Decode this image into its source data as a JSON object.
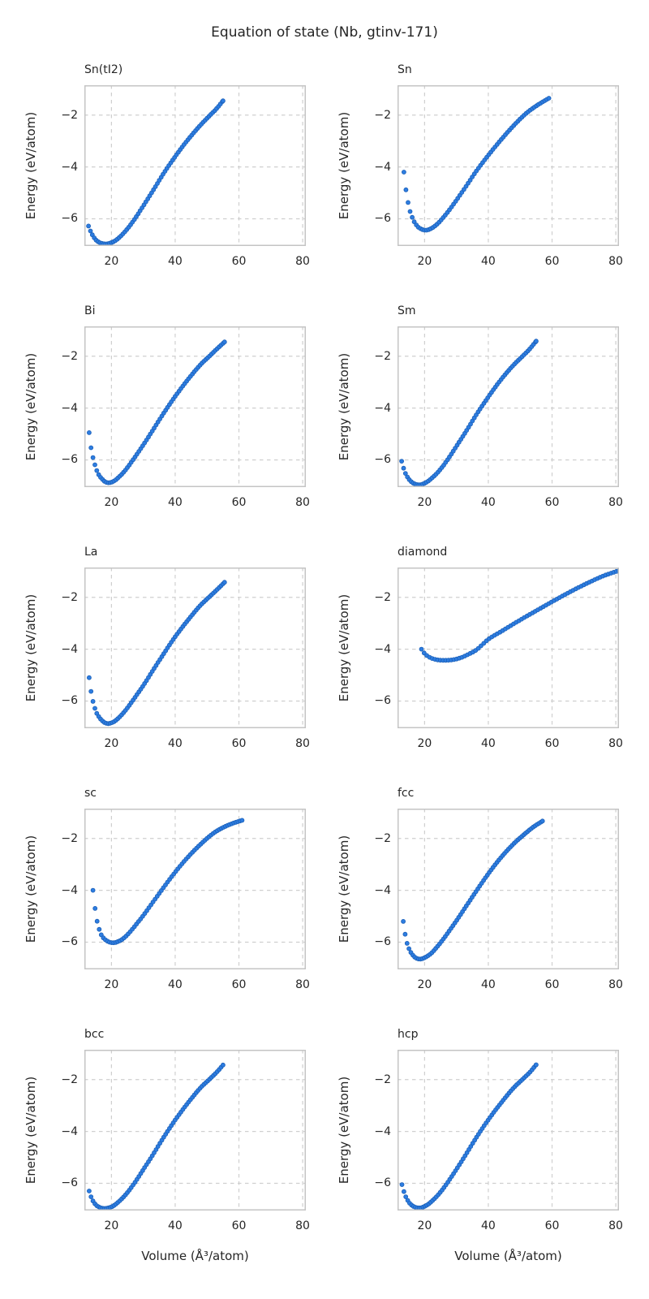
{
  "figure": {
    "title": "Equation of state (Nb, gtinv-171)"
  },
  "colors": {
    "marker_fill": "#2d7de1",
    "marker_edge": "#1c60b8",
    "grid": "#cfcfcf",
    "spine": "#c4c4c4",
    "text": "#262626",
    "background": "#ffffff"
  },
  "chart_data": {
    "type": "scatter",
    "title": "Equation of state (Nb, gtinv-171)",
    "xlabel": "Volume (Å³/atom)",
    "ylabel": "Energy (eV/atom)",
    "xlim": [
      11.5,
      81
    ],
    "ylim": [
      -7.05,
      -0.85
    ],
    "xticks": [
      20,
      40,
      60,
      80
    ],
    "yticks": [
      -2,
      -4,
      -6
    ],
    "xtick_labels": [
      "20",
      "40",
      "60",
      "80"
    ],
    "ytick_labels": [
      "−2",
      "−4",
      "−6"
    ],
    "grid": true,
    "grid_style": "dashed",
    "legend": "none",
    "marker": "circle",
    "subplots": [
      {
        "title": "Sn(tI2)",
        "step": 0.6,
        "anchors": [
          [
            12.8,
            -6.28
          ],
          [
            13.5,
            -6.5
          ],
          [
            14.2,
            -6.66
          ],
          [
            15,
            -6.8
          ],
          [
            16,
            -6.9
          ],
          [
            17,
            -6.95
          ],
          [
            18,
            -6.97
          ],
          [
            19,
            -6.96
          ],
          [
            20,
            -6.92
          ],
          [
            21,
            -6.86
          ],
          [
            22,
            -6.77
          ],
          [
            24,
            -6.53
          ],
          [
            26,
            -6.23
          ],
          [
            28,
            -5.88
          ],
          [
            30,
            -5.5
          ],
          [
            33,
            -4.92
          ],
          [
            36,
            -4.32
          ],
          [
            40,
            -3.6
          ],
          [
            44,
            -2.95
          ],
          [
            48,
            -2.38
          ],
          [
            51,
            -2.0
          ],
          [
            53,
            -1.75
          ],
          [
            55,
            -1.45
          ]
        ]
      },
      {
        "title": "Sn",
        "step": 0.65,
        "anchors": [
          [
            13.5,
            -4.2
          ],
          [
            14,
            -4.75
          ],
          [
            14.5,
            -5.15
          ],
          [
            15,
            -5.5
          ],
          [
            15.6,
            -5.78
          ],
          [
            16.3,
            -6.0
          ],
          [
            17,
            -6.17
          ],
          [
            18,
            -6.32
          ],
          [
            19,
            -6.4
          ],
          [
            20,
            -6.44
          ],
          [
            21,
            -6.43
          ],
          [
            22,
            -6.38
          ],
          [
            23,
            -6.3
          ],
          [
            24,
            -6.2
          ],
          [
            26,
            -5.93
          ],
          [
            28,
            -5.62
          ],
          [
            30,
            -5.28
          ],
          [
            33,
            -4.75
          ],
          [
            36,
            -4.2
          ],
          [
            40,
            -3.55
          ],
          [
            44,
            -2.95
          ],
          [
            48,
            -2.4
          ],
          [
            52,
            -1.92
          ],
          [
            55,
            -1.65
          ],
          [
            59,
            -1.35
          ]
        ]
      },
      {
        "title": "Bi",
        "step": 0.6,
        "anchors": [
          [
            13,
            -4.95
          ],
          [
            13.5,
            -5.45
          ],
          [
            14,
            -5.8
          ],
          [
            14.6,
            -6.1
          ],
          [
            15.3,
            -6.38
          ],
          [
            16,
            -6.57
          ],
          [
            17,
            -6.73
          ],
          [
            18,
            -6.84
          ],
          [
            19,
            -6.88
          ],
          [
            20,
            -6.86
          ],
          [
            21,
            -6.8
          ],
          [
            22,
            -6.7
          ],
          [
            24,
            -6.45
          ],
          [
            26,
            -6.13
          ],
          [
            28,
            -5.78
          ],
          [
            30,
            -5.42
          ],
          [
            33,
            -4.85
          ],
          [
            36,
            -4.27
          ],
          [
            40,
            -3.55
          ],
          [
            44,
            -2.9
          ],
          [
            48,
            -2.32
          ],
          [
            51,
            -1.97
          ],
          [
            53,
            -1.73
          ],
          [
            55.5,
            -1.45
          ]
        ]
      },
      {
        "title": "Sm",
        "step": 0.6,
        "anchors": [
          [
            12.8,
            -6.05
          ],
          [
            13.4,
            -6.32
          ],
          [
            14,
            -6.52
          ],
          [
            15,
            -6.73
          ],
          [
            16,
            -6.86
          ],
          [
            17,
            -6.93
          ],
          [
            18,
            -6.96
          ],
          [
            19,
            -6.95
          ],
          [
            20,
            -6.9
          ],
          [
            21,
            -6.83
          ],
          [
            22,
            -6.73
          ],
          [
            24,
            -6.5
          ],
          [
            26,
            -6.2
          ],
          [
            28,
            -5.85
          ],
          [
            30,
            -5.47
          ],
          [
            33,
            -4.9
          ],
          [
            36,
            -4.3
          ],
          [
            40,
            -3.57
          ],
          [
            44,
            -2.9
          ],
          [
            48,
            -2.33
          ],
          [
            51,
            -1.97
          ],
          [
            53,
            -1.72
          ],
          [
            55,
            -1.42
          ]
        ]
      },
      {
        "title": "La",
        "step": 0.6,
        "anchors": [
          [
            13,
            -5.1
          ],
          [
            13.5,
            -5.55
          ],
          [
            14,
            -5.9
          ],
          [
            14.6,
            -6.2
          ],
          [
            15.3,
            -6.45
          ],
          [
            16,
            -6.6
          ],
          [
            17,
            -6.75
          ],
          [
            18,
            -6.84
          ],
          [
            19,
            -6.87
          ],
          [
            20,
            -6.84
          ],
          [
            21,
            -6.78
          ],
          [
            22,
            -6.68
          ],
          [
            24,
            -6.42
          ],
          [
            26,
            -6.1
          ],
          [
            28,
            -5.75
          ],
          [
            30,
            -5.4
          ],
          [
            33,
            -4.82
          ],
          [
            36,
            -4.25
          ],
          [
            40,
            -3.52
          ],
          [
            44,
            -2.88
          ],
          [
            48,
            -2.3
          ],
          [
            51,
            -1.95
          ],
          [
            53,
            -1.72
          ],
          [
            55.5,
            -1.42
          ]
        ]
      },
      {
        "title": "diamond",
        "step": 0.85,
        "anchors": [
          [
            19,
            -4.0
          ],
          [
            20,
            -4.17
          ],
          [
            21,
            -4.27
          ],
          [
            22,
            -4.34
          ],
          [
            24,
            -4.41
          ],
          [
            26,
            -4.43
          ],
          [
            28,
            -4.42
          ],
          [
            30,
            -4.38
          ],
          [
            32,
            -4.3
          ],
          [
            34,
            -4.18
          ],
          [
            36,
            -4.05
          ],
          [
            40,
            -3.62
          ],
          [
            44,
            -3.32
          ],
          [
            48,
            -3.02
          ],
          [
            52,
            -2.73
          ],
          [
            56,
            -2.45
          ],
          [
            60,
            -2.17
          ],
          [
            64,
            -1.9
          ],
          [
            68,
            -1.64
          ],
          [
            72,
            -1.4
          ],
          [
            76,
            -1.18
          ],
          [
            79,
            -1.05
          ],
          [
            81,
            -0.97
          ]
        ]
      },
      {
        "title": "sc",
        "step": 0.65,
        "anchors": [
          [
            14.2,
            -4.0
          ],
          [
            14.7,
            -4.55
          ],
          [
            15.2,
            -5.0
          ],
          [
            15.8,
            -5.35
          ],
          [
            16.4,
            -5.6
          ],
          [
            17,
            -5.76
          ],
          [
            18,
            -5.9
          ],
          [
            19,
            -5.98
          ],
          [
            20,
            -6.02
          ],
          [
            21,
            -6.02
          ],
          [
            22,
            -5.98
          ],
          [
            23,
            -5.92
          ],
          [
            24,
            -5.83
          ],
          [
            26,
            -5.58
          ],
          [
            28,
            -5.28
          ],
          [
            30,
            -4.97
          ],
          [
            33,
            -4.46
          ],
          [
            36,
            -3.95
          ],
          [
            40,
            -3.3
          ],
          [
            44,
            -2.72
          ],
          [
            48,
            -2.22
          ],
          [
            52,
            -1.8
          ],
          [
            55,
            -1.58
          ],
          [
            58,
            -1.42
          ],
          [
            61,
            -1.3
          ]
        ]
      },
      {
        "title": "fcc",
        "step": 0.6,
        "anchors": [
          [
            13.3,
            -5.2
          ],
          [
            13.8,
            -5.62
          ],
          [
            14.3,
            -5.95
          ],
          [
            15,
            -6.22
          ],
          [
            15.7,
            -6.4
          ],
          [
            16.5,
            -6.53
          ],
          [
            17.3,
            -6.61
          ],
          [
            18.2,
            -6.65
          ],
          [
            19.2,
            -6.64
          ],
          [
            20,
            -6.6
          ],
          [
            21,
            -6.53
          ],
          [
            22,
            -6.44
          ],
          [
            24,
            -6.17
          ],
          [
            26,
            -5.86
          ],
          [
            28,
            -5.52
          ],
          [
            30,
            -5.17
          ],
          [
            33,
            -4.62
          ],
          [
            36,
            -4.07
          ],
          [
            40,
            -3.36
          ],
          [
            44,
            -2.73
          ],
          [
            48,
            -2.2
          ],
          [
            51,
            -1.87
          ],
          [
            54,
            -1.57
          ],
          [
            57,
            -1.33
          ]
        ]
      },
      {
        "title": "bcc",
        "step": 0.6,
        "anchors": [
          [
            13,
            -6.3
          ],
          [
            13.6,
            -6.52
          ],
          [
            14.2,
            -6.68
          ],
          [
            15,
            -6.82
          ],
          [
            16,
            -6.91
          ],
          [
            17,
            -6.96
          ],
          [
            18,
            -6.97
          ],
          [
            19,
            -6.95
          ],
          [
            20,
            -6.91
          ],
          [
            21,
            -6.84
          ],
          [
            22,
            -6.74
          ],
          [
            24,
            -6.5
          ],
          [
            26,
            -6.2
          ],
          [
            28,
            -5.85
          ],
          [
            30,
            -5.47
          ],
          [
            33,
            -4.9
          ],
          [
            36,
            -4.3
          ],
          [
            40,
            -3.56
          ],
          [
            44,
            -2.9
          ],
          [
            48,
            -2.31
          ],
          [
            51,
            -1.96
          ],
          [
            53,
            -1.72
          ],
          [
            55,
            -1.44
          ]
        ]
      },
      {
        "title": "hcp",
        "step": 0.6,
        "anchors": [
          [
            12.9,
            -6.05
          ],
          [
            13.5,
            -6.32
          ],
          [
            14.1,
            -6.52
          ],
          [
            15,
            -6.72
          ],
          [
            16,
            -6.85
          ],
          [
            17,
            -6.92
          ],
          [
            18,
            -6.95
          ],
          [
            19,
            -6.94
          ],
          [
            20,
            -6.89
          ],
          [
            21,
            -6.82
          ],
          [
            22,
            -6.72
          ],
          [
            24,
            -6.48
          ],
          [
            26,
            -6.18
          ],
          [
            28,
            -5.83
          ],
          [
            30,
            -5.46
          ],
          [
            33,
            -4.88
          ],
          [
            36,
            -4.28
          ],
          [
            40,
            -3.55
          ],
          [
            44,
            -2.9
          ],
          [
            48,
            -2.31
          ],
          [
            51,
            -1.96
          ],
          [
            53,
            -1.72
          ],
          [
            55,
            -1.43
          ]
        ]
      }
    ]
  }
}
